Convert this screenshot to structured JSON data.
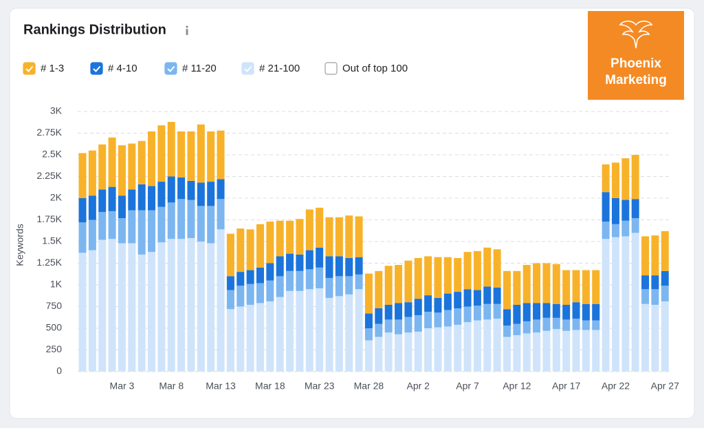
{
  "logo": {
    "line1": "Phoenix",
    "line2": "Marketing"
  },
  "chart_data": {
    "type": "stacked_bar",
    "title": "Rankings Distribution",
    "y_label": "Keywords",
    "categories": [
      null,
      null,
      null,
      null,
      "Mar 3",
      null,
      null,
      null,
      null,
      "Mar 8",
      null,
      null,
      null,
      null,
      "Mar 13",
      null,
      null,
      null,
      null,
      "Mar 18",
      null,
      null,
      null,
      null,
      "Mar 23",
      null,
      null,
      null,
      null,
      "Mar 28",
      null,
      null,
      null,
      null,
      "Apr 2",
      null,
      null,
      null,
      null,
      "Apr 7",
      null,
      null,
      null,
      null,
      "Apr 12",
      null,
      null,
      null,
      null,
      "Apr 17",
      null,
      null,
      null,
      null,
      "Apr 22",
      null,
      null,
      null,
      null,
      "Apr 27"
    ],
    "ylim": [
      0,
      3000
    ],
    "yticks": [
      0,
      250,
      500,
      750,
      {
        "value": 1000,
        "label": "1K"
      },
      {
        "value": 1250,
        "label": "1.25K"
      },
      {
        "value": 1500,
        "label": "1.5K"
      },
      {
        "value": 1750,
        "label": "1.75K"
      },
      {
        "value": 2000,
        "label": "2K"
      },
      {
        "value": 2250,
        "label": "2.25K"
      },
      {
        "value": 2500,
        "label": "2.5K"
      },
      {
        "value": 2750,
        "label": "2.75K"
      },
      {
        "value": 3000,
        "label": "3K"
      }
    ],
    "grid": true,
    "series": [
      {
        "name": "# 1-3",
        "color": "#f8b22a",
        "checked": true,
        "values": [
          520,
          520,
          520,
          570,
          580,
          530,
          500,
          630,
          650,
          630,
          530,
          570,
          670,
          580,
          560,
          490,
          500,
          470,
          500,
          480,
          410,
          380,
          410,
          470,
          460,
          450,
          450,
          490,
          470,
          460,
          430,
          450,
          440,
          480,
          470,
          450,
          470,
          420,
          390,
          430,
          450,
          450,
          440,
          440,
          390,
          440,
          460,
          460,
          460,
          400,
          370,
          390,
          390,
          320,
          410,
          480,
          510,
          450,
          460,
          460
        ]
      },
      {
        "name": "# 4-10",
        "color": "#1b74db",
        "checked": true,
        "values": [
          280,
          280,
          260,
          280,
          260,
          240,
          300,
          280,
          290,
          300,
          250,
          220,
          270,
          280,
          230,
          160,
          160,
          160,
          180,
          200,
          230,
          200,
          190,
          220,
          230,
          250,
          230,
          210,
          200,
          170,
          180,
          170,
          190,
          170,
          190,
          190,
          170,
          190,
          190,
          200,
          180,
          200,
          190,
          190,
          220,
          210,
          190,
          170,
          160,
          170,
          190,
          190,
          190,
          340,
          300,
          240,
          220,
          160,
          160,
          170
        ]
      },
      {
        "name": "# 11-20",
        "color": "#7cb6f1",
        "checked": true,
        "values": [
          350,
          350,
          320,
          320,
          290,
          380,
          510,
          480,
          410,
          420,
          460,
          440,
          410,
          430,
          350,
          220,
          240,
          240,
          230,
          240,
          240,
          230,
          230,
          230,
          240,
          230,
          230,
          210,
          170,
          140,
          150,
          150,
          170,
          180,
          190,
          190,
          170,
          190,
          190,
          180,
          170,
          180,
          170,
          130,
          130,
          140,
          150,
          150,
          130,
          130,
          130,
          110,
          110,
          200,
          150,
          180,
          170,
          170,
          180,
          180
        ]
      },
      {
        "name": "# 21-100",
        "color": "#cfe4fa",
        "checked": true,
        "values": [
          1370,
          1400,
          1520,
          1530,
          1480,
          1480,
          1350,
          1380,
          1490,
          1530,
          1530,
          1540,
          1500,
          1480,
          1640,
          720,
          750,
          770,
          790,
          810,
          860,
          930,
          930,
          950,
          960,
          850,
          870,
          890,
          950,
          360,
          400,
          450,
          430,
          450,
          460,
          500,
          510,
          520,
          540,
          570,
          590,
          600,
          610,
          400,
          420,
          440,
          450,
          470,
          490,
          470,
          480,
          480,
          480,
          1530,
          1550,
          1560,
          1600,
          780,
          770,
          810
        ]
      },
      {
        "name": "Out of top 100",
        "color": "#ffffff",
        "checked": false,
        "values": [
          null,
          null,
          null,
          null,
          null,
          null,
          null,
          null,
          null,
          null,
          null,
          null,
          null,
          null,
          null,
          null,
          null,
          null,
          null,
          null,
          null,
          null,
          null,
          null,
          null,
          null,
          null,
          null,
          null,
          null,
          null,
          null,
          null,
          null,
          null,
          null,
          null,
          null,
          null,
          null,
          null,
          null,
          null,
          null,
          null,
          null,
          null,
          null,
          null,
          null,
          null,
          null,
          null,
          null,
          null,
          null,
          null,
          null,
          null,
          null
        ]
      }
    ]
  }
}
